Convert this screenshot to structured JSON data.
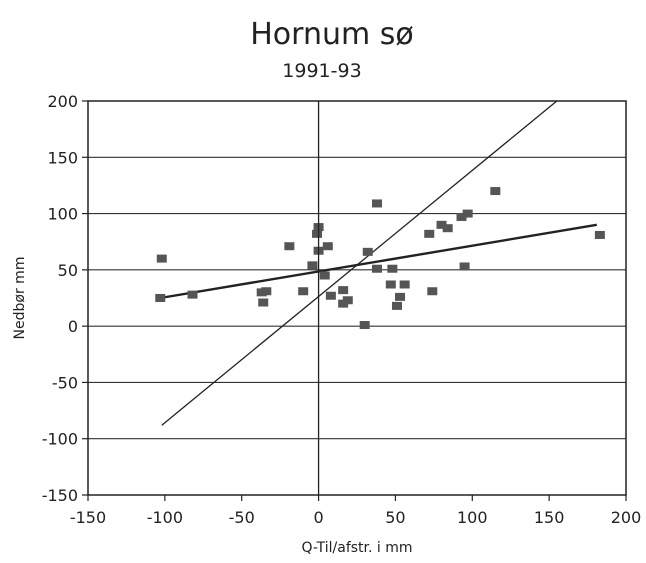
{
  "chart_data": {
    "type": "scatter",
    "title": "Hornum sø",
    "subtitle": "1991-93",
    "xlabel": "Q-Til/afstr. i mm",
    "ylabel": "Nedbør mm",
    "xlim": [
      -150,
      200
    ],
    "ylim": [
      -150,
      200
    ],
    "xticks": [
      -150,
      -100,
      -50,
      0,
      50,
      100,
      150,
      200
    ],
    "yticks": [
      -150,
      -100,
      -50,
      0,
      50,
      100,
      150,
      200
    ],
    "xtick_labels": [
      "-150",
      "-100",
      "-50",
      "0",
      "50",
      "100",
      "150",
      "200"
    ],
    "ytick_labels": [
      "-150",
      "-100",
      "-50",
      "0",
      "50",
      "100",
      "150",
      "200"
    ],
    "grid": "horizontal",
    "points": [
      {
        "x": -102,
        "y": 60
      },
      {
        "x": -103,
        "y": 25
      },
      {
        "x": -82,
        "y": 28
      },
      {
        "x": -37,
        "y": 30
      },
      {
        "x": -34,
        "y": 31
      },
      {
        "x": -36,
        "y": 21
      },
      {
        "x": -19,
        "y": 71
      },
      {
        "x": -10,
        "y": 31
      },
      {
        "x": -4,
        "y": 54
      },
      {
        "x": -1,
        "y": 82
      },
      {
        "x": 0,
        "y": 88
      },
      {
        "x": 0,
        "y": 67
      },
      {
        "x": 4,
        "y": 45
      },
      {
        "x": 6,
        "y": 71
      },
      {
        "x": 8,
        "y": 27
      },
      {
        "x": 16,
        "y": 32
      },
      {
        "x": 16,
        "y": 20
      },
      {
        "x": 19,
        "y": 23
      },
      {
        "x": 30,
        "y": 1
      },
      {
        "x": 32,
        "y": 66
      },
      {
        "x": 38,
        "y": 109
      },
      {
        "x": 38,
        "y": 51
      },
      {
        "x": 47,
        "y": 37
      },
      {
        "x": 48,
        "y": 51
      },
      {
        "x": 51,
        "y": 18
      },
      {
        "x": 53,
        "y": 26
      },
      {
        "x": 56,
        "y": 37
      },
      {
        "x": 72,
        "y": 82
      },
      {
        "x": 74,
        "y": 31
      },
      {
        "x": 80,
        "y": 90
      },
      {
        "x": 84,
        "y": 87
      },
      {
        "x": 93,
        "y": 97
      },
      {
        "x": 97,
        "y": 100
      },
      {
        "x": 95,
        "y": 53
      },
      {
        "x": 115,
        "y": 120
      },
      {
        "x": 183,
        "y": 81
      }
    ],
    "lines": [
      {
        "x": [
          -103,
          181
        ],
        "y": [
          25,
          90
        ],
        "emphasis": "bold"
      },
      {
        "x": [
          -102,
          155
        ],
        "y": [
          -88,
          200
        ],
        "emphasis": "thin"
      }
    ],
    "colors": {
      "marker": "#555555",
      "line": "#222222",
      "grid": "#333333"
    }
  }
}
